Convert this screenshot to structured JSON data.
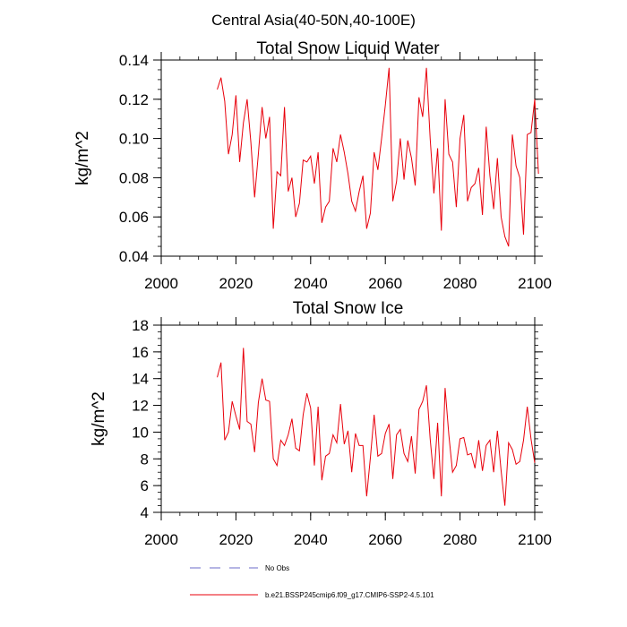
{
  "figure": {
    "suptitle": "Central Asia(40-50N,40-100E)",
    "legend": {
      "obs_label": "No Obs",
      "obs_color": "#6b6bc8",
      "model_label": "b.e21.BSSP245cmip6.f09_g17.CMIP6-SSP2-4.5.101",
      "model_color": "#e8000b"
    }
  },
  "chart_data": [
    {
      "type": "line",
      "title": "Total Snow Liquid Water",
      "xlabel": "",
      "ylabel": "kg/m^2",
      "xlim": [
        2000,
        2100
      ],
      "ylim": [
        0.04,
        0.14
      ],
      "xticks": [
        2000,
        2020,
        2040,
        2060,
        2080,
        2100
      ],
      "xtick_labels": [
        "2000",
        "2020",
        "2040",
        "2060",
        "2080",
        "2100"
      ],
      "yticks": [
        0.04,
        0.06,
        0.08,
        0.1,
        0.12,
        0.14
      ],
      "ytick_labels": [
        "0.04",
        "0.06",
        "0.08",
        "0.10",
        "0.12",
        "0.14"
      ],
      "x_minor_step": 5,
      "y_minor_step": 0.005,
      "series": [
        {
          "name": "b.e21.BSSP245cmip6.f09_g17.CMIP6-SSP2-4.5.101",
          "color": "#e8000b",
          "x_start": 2015,
          "values": [
            0.125,
            0.131,
            0.119,
            0.092,
            0.102,
            0.122,
            0.088,
            0.108,
            0.12,
            0.098,
            0.07,
            0.092,
            0.116,
            0.1,
            0.111,
            0.054,
            0.083,
            0.081,
            0.116,
            0.073,
            0.08,
            0.06,
            0.067,
            0.089,
            0.088,
            0.091,
            0.077,
            0.093,
            0.057,
            0.065,
            0.068,
            0.095,
            0.088,
            0.102,
            0.093,
            0.082,
            0.068,
            0.063,
            0.073,
            0.081,
            0.054,
            0.062,
            0.093,
            0.084,
            0.1,
            0.117,
            0.136,
            0.068,
            0.078,
            0.1,
            0.079,
            0.099,
            0.09,
            0.076,
            0.121,
            0.111,
            0.136,
            0.1,
            0.072,
            0.095,
            0.053,
            0.12,
            0.092,
            0.088,
            0.065,
            0.1,
            0.112,
            0.068,
            0.075,
            0.077,
            0.085,
            0.061,
            0.106,
            0.081,
            0.064,
            0.09,
            0.06,
            0.05,
            0.045,
            0.102,
            0.086,
            0.08,
            0.051,
            0.102,
            0.103,
            0.12,
            0.082
          ]
        }
      ]
    },
    {
      "type": "line",
      "title": "Total Snow Ice",
      "xlabel": "",
      "ylabel": "kg/m^2",
      "xlim": [
        2000,
        2100
      ],
      "ylim": [
        4,
        18
      ],
      "xticks": [
        2000,
        2020,
        2040,
        2060,
        2080,
        2100
      ],
      "xtick_labels": [
        "2000",
        "2020",
        "2040",
        "2060",
        "2080",
        "2100"
      ],
      "yticks": [
        4,
        6,
        8,
        10,
        12,
        14,
        16,
        18
      ],
      "ytick_labels": [
        "4",
        "6",
        "8",
        "10",
        "12",
        "14",
        "16",
        "18"
      ],
      "x_minor_step": 5,
      "y_minor_step": 0.5,
      "series": [
        {
          "name": "b.e21.BSSP245cmip6.f09_g17.CMIP6-SSP2-4.5.101",
          "color": "#e8000b",
          "x_start": 2015,
          "values": [
            14.1,
            15.2,
            9.4,
            10.0,
            12.3,
            11.2,
            10.2,
            16.3,
            10.8,
            10.6,
            8.5,
            12.2,
            14.0,
            12.4,
            12.3,
            8.0,
            7.5,
            9.4,
            9.0,
            9.8,
            11.0,
            8.8,
            8.6,
            11.3,
            12.9,
            11.8,
            7.5,
            11.9,
            6.4,
            8.2,
            8.4,
            9.8,
            9.2,
            12.1,
            9.1,
            10.1,
            7.0,
            9.9,
            9.0,
            9.0,
            5.2,
            8.1,
            11.3,
            8.2,
            8.4,
            9.9,
            10.6,
            6.5,
            9.8,
            10.2,
            8.4,
            7.8,
            9.7,
            6.9,
            11.7,
            12.3,
            13.5,
            9.5,
            6.5,
            10.7,
            5.2,
            13.3,
            9.8,
            7.0,
            7.5,
            9.5,
            9.6,
            8.3,
            8.4,
            7.3,
            9.4,
            7.1,
            9.0,
            9.4,
            7.0,
            10.1,
            7.1,
            4.5,
            9.2,
            8.7,
            7.6,
            7.8,
            9.4,
            11.9,
            9.5,
            7.7
          ]
        }
      ]
    }
  ]
}
